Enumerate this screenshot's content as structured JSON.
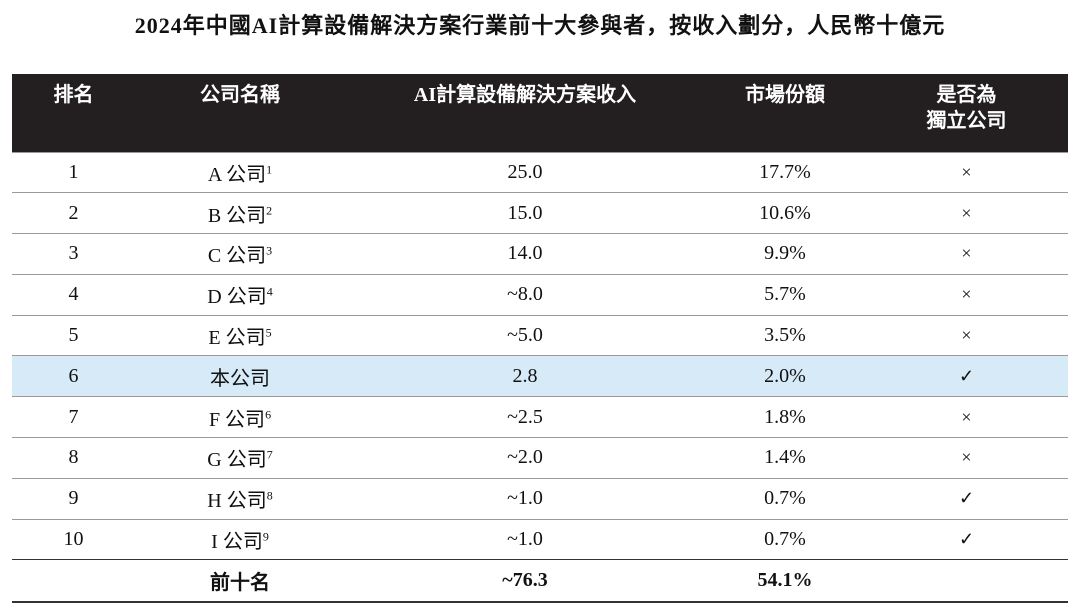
{
  "title": "2024年中國AI計算設備解決方案行業前十大參與者，按收入劃分，人民幣十億元",
  "table": {
    "header": [
      "排名",
      "公司名稱",
      "AI計算設備解決方案收入",
      "市場份額",
      [
        "是否為",
        "獨立公司"
      ]
    ],
    "rows": [
      {
        "rank": "1",
        "name": "A 公司",
        "note": "1",
        "revenue": "25.0",
        "share": "17.7%",
        "independent": "×"
      },
      {
        "rank": "2",
        "name": "B 公司",
        "note": "2",
        "revenue": "15.0",
        "share": "10.6%",
        "independent": "×"
      },
      {
        "rank": "3",
        "name": "C 公司",
        "note": "3",
        "revenue": "14.0",
        "share": "9.9%",
        "independent": "×"
      },
      {
        "rank": "4",
        "name": "D 公司",
        "note": "4",
        "revenue": "~8.0",
        "share": "5.7%",
        "independent": "×"
      },
      {
        "rank": "5",
        "name": "E 公司",
        "note": "5",
        "revenue": "~5.0",
        "share": "3.5%",
        "independent": "×"
      },
      {
        "rank": "6",
        "name": "本公司",
        "revenue": "2.8",
        "share": "2.0%",
        "independent": "✓",
        "highlight": true
      },
      {
        "rank": "7",
        "name": "F 公司",
        "note": "6",
        "revenue": "~2.5",
        "share": "1.8%",
        "independent": "×"
      },
      {
        "rank": "8",
        "name": "G 公司",
        "note": "7",
        "revenue": "~2.0",
        "share": "1.4%",
        "independent": "×"
      },
      {
        "rank": "9",
        "name": "H 公司",
        "note": "8",
        "revenue": "~1.0",
        "share": "0.7%",
        "independent": "✓"
      },
      {
        "rank": "10",
        "name": "I 公司",
        "note": "9",
        "revenue": "~1.0",
        "share": "0.7%",
        "independent": "✓"
      }
    ],
    "total": {
      "label": "前十名",
      "revenue": "~76.3",
      "share": "54.1%"
    }
  }
}
